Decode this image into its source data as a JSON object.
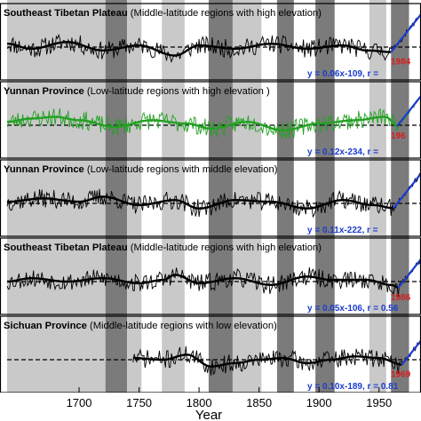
{
  "chart_data": {
    "type": "line",
    "xlabel": "Year",
    "xlim": [
      1640,
      1985
    ],
    "xticks": [
      1700,
      1750,
      1800,
      1850,
      1900,
      1950
    ],
    "shading": [
      {
        "start": 1640,
        "end": 1722,
        "tone": "light"
      },
      {
        "start": 1722,
        "end": 1740,
        "tone": "dark"
      },
      {
        "start": 1740,
        "end": 1752,
        "tone": "light"
      },
      {
        "start": 1769,
        "end": 1788,
        "tone": "light"
      },
      {
        "start": 1788,
        "end": 1808,
        "tone": "white"
      },
      {
        "start": 1808,
        "end": 1828,
        "tone": "dark"
      },
      {
        "start": 1828,
        "end": 1852,
        "tone": "light"
      },
      {
        "start": 1865,
        "end": 1879,
        "tone": "dark"
      },
      {
        "start": 1897,
        "end": 1913,
        "tone": "dark"
      },
      {
        "start": 1942,
        "end": 1956,
        "tone": "light"
      },
      {
        "start": 1960,
        "end": 1975,
        "tone": "dark"
      }
    ],
    "panels": [
      {
        "label_main": "Southeast Tibetan Plateau",
        "label_rest": " (Middle-latitude regions with high elevation)",
        "color": "#000000",
        "start": 1640,
        "peak": 1960,
        "seed": 11,
        "anchors": [
          [
            1640,
            0.2
          ],
          [
            1660,
            -0.1
          ],
          [
            1690,
            0.3
          ],
          [
            1720,
            -0.2
          ],
          [
            1750,
            0.1
          ],
          [
            1780,
            -0.5
          ],
          [
            1800,
            0.1
          ],
          [
            1830,
            -0.1
          ],
          [
            1860,
            0.2
          ],
          [
            1890,
            -0.1
          ],
          [
            1920,
            0.1
          ],
          [
            1940,
            -0.2
          ],
          [
            1962,
            -0.3
          ]
        ],
        "trend": {
          "equation": "y = 0.06x-109, r =",
          "breakpoint": "1984"
        }
      },
      {
        "label_main": "Yunnan Province",
        "label_rest": " (Low-latitude regions with high elevation )",
        "color": "#22a022",
        "start": 1640,
        "peak": 1965,
        "seed": 23,
        "anchors": [
          [
            1640,
            0.2
          ],
          [
            1660,
            0.4
          ],
          [
            1680,
            0.5
          ],
          [
            1700,
            0.3
          ],
          [
            1730,
            -0.1
          ],
          [
            1760,
            0.3
          ],
          [
            1790,
            0.1
          ],
          [
            1810,
            -0.2
          ],
          [
            1840,
            0.2
          ],
          [
            1870,
            -0.3
          ],
          [
            1900,
            0.1
          ],
          [
            1930,
            0.3
          ],
          [
            1955,
            0.5
          ],
          [
            1967,
            -0.1
          ]
        ],
        "trend": {
          "equation": "y = 0.12x-234, r =",
          "breakpoint": "196"
        }
      },
      {
        "label_main": "Yunnan Province",
        "label_rest": " (Low-latitude regions with middle elevation)",
        "color": "#000000",
        "start": 1640,
        "peak": 1962,
        "seed": 37,
        "anchors": [
          [
            1640,
            0.1
          ],
          [
            1670,
            0.3
          ],
          [
            1700,
            0.1
          ],
          [
            1720,
            0.4
          ],
          [
            1750,
            -0.1
          ],
          [
            1780,
            0.2
          ],
          [
            1800,
            -0.3
          ],
          [
            1830,
            0.2
          ],
          [
            1860,
            0.1
          ],
          [
            1890,
            -0.3
          ],
          [
            1920,
            0.2
          ],
          [
            1945,
            -0.1
          ],
          [
            1964,
            -0.3
          ]
        ],
        "trend": {
          "equation": "y = 0.11x-222, r =",
          "breakpoint": ""
        }
      },
      {
        "label_main": "Southeast Tibetan Plateau",
        "label_rest": " (Middle-latitude regions with high elevation)",
        "color": "#000000",
        "start": 1640,
        "peak": 1966,
        "seed": 53,
        "anchors": [
          [
            1640,
            0.0
          ],
          [
            1660,
            0.2
          ],
          [
            1690,
            0.0
          ],
          [
            1720,
            0.2
          ],
          [
            1750,
            -0.1
          ],
          [
            1770,
            0.1
          ],
          [
            1780,
            0.4
          ],
          [
            1800,
            -0.1
          ],
          [
            1830,
            0.2
          ],
          [
            1860,
            -0.2
          ],
          [
            1890,
            0.3
          ],
          [
            1910,
            0.1
          ],
          [
            1940,
            0.1
          ],
          [
            1960,
            -0.2
          ],
          [
            1968,
            -0.4
          ]
        ],
        "trend": {
          "equation": "y = 0.05x-106, r = 0.56",
          "breakpoint": "1986"
        }
      },
      {
        "label_main": "Sichuan Province",
        "label_rest": " (Middle-latitude regions with low elevation)",
        "color": "#000000",
        "start": 1745,
        "peak": 1969,
        "seed": 71,
        "anchors": [
          [
            1745,
            0.1
          ],
          [
            1770,
            0.0
          ],
          [
            1790,
            0.3
          ],
          [
            1810,
            -0.4
          ],
          [
            1830,
            -0.2
          ],
          [
            1850,
            0.0
          ],
          [
            1870,
            0.1
          ],
          [
            1890,
            -0.2
          ],
          [
            1910,
            0.0
          ],
          [
            1930,
            0.2
          ],
          [
            1950,
            0.1
          ],
          [
            1970,
            -0.3
          ]
        ],
        "trend": {
          "equation": "y = 0.10x-189, r = 0.81",
          "breakpoint": "1969"
        }
      }
    ]
  }
}
